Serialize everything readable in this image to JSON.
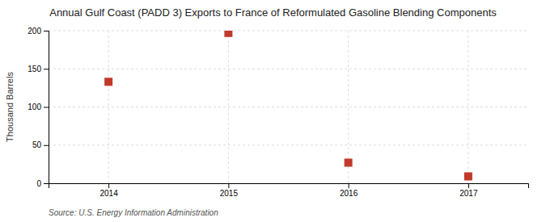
{
  "chart_data": {
    "type": "scatter",
    "title": "Annual Gulf Coast (PADD 3) Exports to France of Reformulated Gasoline Blending Components",
    "y_label": "Thousand Barrels",
    "annotations": [
      "Source: U.S. Energy Information Administration"
    ],
    "x": [
      2014,
      2015,
      2016,
      2017
    ],
    "values": [
      133,
      197,
      27,
      9
    ],
    "xlim": [
      2013.5,
      2017.5
    ],
    "ylim": [
      0,
      200
    ],
    "xticks": [
      2014,
      2015,
      2016,
      2017
    ],
    "yticks": [
      0,
      50,
      100,
      150,
      200
    ],
    "color": "#c0392b",
    "marker": "square",
    "grid": true
  }
}
